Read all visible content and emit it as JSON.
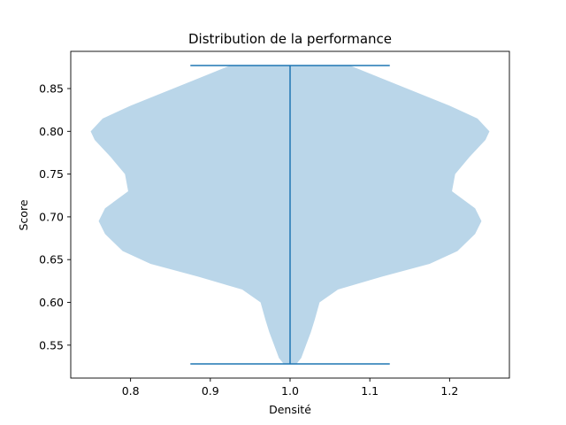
{
  "chart_data": {
    "type": "violin",
    "title": "Distribution de la performance",
    "xlabel": "Densité",
    "ylabel": "Score",
    "xlim": [
      0.725,
      1.275
    ],
    "ylim": [
      0.5115,
      0.8935
    ],
    "x_ticks": [
      0.8,
      0.9,
      1.0,
      1.1,
      1.2
    ],
    "x_tick_labels": [
      "0.8",
      "0.9",
      "1.0",
      "1.1",
      "1.2"
    ],
    "y_ticks": [
      0.55,
      0.6,
      0.65,
      0.7,
      0.75,
      0.8,
      0.85
    ],
    "y_tick_labels": [
      "0.55",
      "0.60",
      "0.65",
      "0.70",
      "0.75",
      "0.80",
      "0.85"
    ],
    "grid": false,
    "violin": {
      "position": 1.0,
      "min": 0.528,
      "max": 0.877,
      "cap_half_width": 0.125,
      "fill_color": "#bad6e9",
      "line_color": "#1f77b4",
      "profile": [
        {
          "y": 0.528,
          "half_width": 0.008
        },
        {
          "y": 0.535,
          "half_width": 0.014
        },
        {
          "y": 0.55,
          "half_width": 0.02
        },
        {
          "y": 0.565,
          "half_width": 0.026
        },
        {
          "y": 0.58,
          "half_width": 0.031
        },
        {
          "y": 0.6,
          "half_width": 0.037
        },
        {
          "y": 0.615,
          "half_width": 0.06
        },
        {
          "y": 0.63,
          "half_width": 0.115
        },
        {
          "y": 0.645,
          "half_width": 0.175
        },
        {
          "y": 0.66,
          "half_width": 0.21
        },
        {
          "y": 0.68,
          "half_width": 0.232
        },
        {
          "y": 0.695,
          "half_width": 0.24
        },
        {
          "y": 0.71,
          "half_width": 0.232
        },
        {
          "y": 0.73,
          "half_width": 0.203
        },
        {
          "y": 0.75,
          "half_width": 0.207
        },
        {
          "y": 0.77,
          "half_width": 0.225
        },
        {
          "y": 0.79,
          "half_width": 0.245
        },
        {
          "y": 0.8,
          "half_width": 0.25
        },
        {
          "y": 0.815,
          "half_width": 0.235
        },
        {
          "y": 0.83,
          "half_width": 0.2
        },
        {
          "y": 0.845,
          "half_width": 0.16
        },
        {
          "y": 0.86,
          "half_width": 0.12
        },
        {
          "y": 0.877,
          "half_width": 0.075
        }
      ]
    }
  }
}
